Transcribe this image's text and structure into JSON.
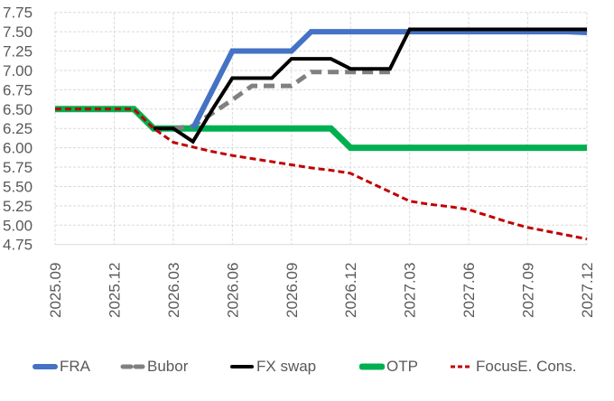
{
  "chart_data": {
    "type": "line",
    "title": "",
    "xlabel": "",
    "ylabel": "",
    "ylim": [
      4.75,
      7.75
    ],
    "yticks": [
      "7.75",
      "7.50",
      "7.25",
      "7.00",
      "6.75",
      "6.50",
      "6.25",
      "6.00",
      "5.75",
      "5.50",
      "5.25",
      "5.00",
      "4.75"
    ],
    "xticks": [
      "2025.09",
      "2025.12",
      "2026.03",
      "2026.06",
      "2026.09",
      "2026.12",
      "2027.03",
      "2027.06",
      "2027.09",
      "2027.12"
    ],
    "grid": true,
    "legend_position": "bottom",
    "x": [
      "2025.09",
      "2025.10",
      "2025.11",
      "2025.12",
      "2026.01",
      "2026.02",
      "2026.03",
      "2026.04",
      "2026.05",
      "2026.06",
      "2026.07",
      "2026.08",
      "2026.09",
      "2026.10",
      "2026.11",
      "2026.12",
      "2027.01",
      "2027.02",
      "2027.03",
      "2027.04",
      "2027.05",
      "2027.06",
      "2027.07",
      "2027.08",
      "2027.09",
      "2027.10",
      "2027.11",
      "2027.12"
    ],
    "series": [
      {
        "name": "FRA",
        "color": "#4472C4",
        "style": "solid",
        "width": 6,
        "values": [
          null,
          null,
          null,
          null,
          null,
          null,
          null,
          6.25,
          6.75,
          7.25,
          7.25,
          7.25,
          7.25,
          7.5,
          7.5,
          7.5,
          7.5,
          7.5,
          7.5,
          7.5,
          7.5,
          7.5,
          7.5,
          7.5,
          7.5,
          7.5,
          7.5,
          7.49
        ]
      },
      {
        "name": "Bubor",
        "color": "#808080",
        "style": "dashed",
        "width": 5,
        "values": [
          null,
          null,
          null,
          null,
          null,
          null,
          6.25,
          6.28,
          6.45,
          6.62,
          6.8,
          6.8,
          6.8,
          6.98,
          6.98,
          6.98,
          6.98,
          6.98,
          null,
          null,
          null,
          null,
          null,
          null,
          null,
          null,
          null,
          null
        ]
      },
      {
        "name": "FX swap",
        "color": "#000000",
        "style": "solid",
        "width": 4,
        "values": [
          null,
          null,
          null,
          null,
          null,
          6.25,
          6.25,
          6.08,
          6.5,
          6.9,
          6.9,
          6.9,
          7.15,
          7.15,
          7.15,
          7.02,
          7.02,
          7.02,
          7.53,
          7.53,
          7.53,
          7.53,
          7.53,
          7.53,
          7.53,
          7.53,
          7.53,
          7.53
        ]
      },
      {
        "name": "OTP",
        "color": "#00B050",
        "style": "solid",
        "width": 7,
        "values": [
          6.5,
          6.5,
          6.5,
          6.5,
          6.5,
          6.25,
          6.25,
          6.25,
          6.25,
          6.25,
          6.25,
          6.25,
          6.25,
          6.25,
          6.25,
          6.0,
          6.0,
          6.0,
          6.0,
          6.0,
          6.0,
          6.0,
          6.0,
          6.0,
          6.0,
          6.0,
          6.0,
          6.0
        ]
      },
      {
        "name": "FocusE. Cons.",
        "color": "#C00000",
        "style": "dotted",
        "width": 3,
        "values": [
          6.5,
          6.5,
          6.5,
          6.5,
          6.5,
          6.25,
          6.07,
          6.01,
          5.95,
          5.9,
          5.86,
          5.82,
          5.78,
          5.74,
          5.71,
          5.67,
          5.55,
          5.43,
          5.31,
          5.27,
          5.24,
          5.2,
          5.12,
          5.04,
          4.97,
          4.92,
          4.87,
          4.82
        ]
      }
    ]
  },
  "legend": {
    "items": [
      {
        "label": "FRA"
      },
      {
        "label": "Bubor"
      },
      {
        "label": "FX swap"
      },
      {
        "label": "OTP"
      },
      {
        "label": "FocusE. Cons."
      }
    ]
  }
}
